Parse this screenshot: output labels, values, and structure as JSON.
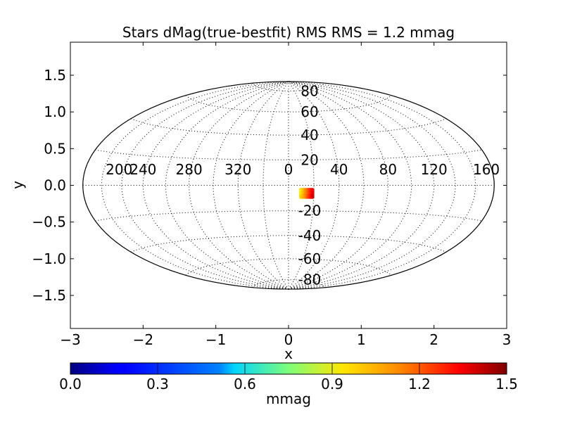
{
  "chart_data": {
    "type": "scatter",
    "title": "Stars dMag(true-bestfit)  RMS  RMS =  1.2 mmag",
    "xlabel": "x",
    "ylabel": "y",
    "xlim": [
      -3,
      3
    ],
    "ylim": [
      -1.95,
      1.95
    ],
    "xticks": [
      -3,
      -2,
      -1,
      0,
      1,
      2,
      3
    ],
    "yticks": [
      -1.5,
      -1.0,
      -0.5,
      0.0,
      0.5,
      1.0,
      1.5
    ],
    "xtick_labels": [
      "−3",
      "−2",
      "−1",
      "0",
      "1",
      "2",
      "3"
    ],
    "ytick_labels": [
      "−1.5",
      "−1.0",
      "−0.5",
      "0.0",
      "0.5",
      "1.0",
      "1.5"
    ],
    "projection": "hammer-aitoff",
    "grid": true,
    "longitude_labels": [
      {
        "lon": 200,
        "label": "200"
      },
      {
        "lon": 240,
        "label": "240"
      },
      {
        "lon": 280,
        "label": "280"
      },
      {
        "lon": 320,
        "label": "320"
      },
      {
        "lon": 0,
        "label": "0"
      },
      {
        "lon": 40,
        "label": "40"
      },
      {
        "lon": 80,
        "label": "80"
      },
      {
        "lon": 120,
        "label": "120"
      },
      {
        "lon": 160,
        "label": "160"
      }
    ],
    "latitude_labels": [
      {
        "lat": 80,
        "label": "80"
      },
      {
        "lat": 60,
        "label": "60"
      },
      {
        "lat": 40,
        "label": "40"
      },
      {
        "lat": 20,
        "label": "20"
      },
      {
        "lat": -20,
        "label": "-20"
      },
      {
        "lat": -40,
        "label": "-40"
      },
      {
        "lat": -60,
        "label": "-60"
      },
      {
        "lat": -80,
        "label": "-80"
      }
    ],
    "points": [
      {
        "x": 0.17,
        "y": -0.06,
        "v": 1.0
      },
      {
        "x": 0.19,
        "y": -0.06,
        "v": 1.02
      },
      {
        "x": 0.21,
        "y": -0.06,
        "v": 1.05
      },
      {
        "x": 0.23,
        "y": -0.06,
        "v": 1.1
      },
      {
        "x": 0.25,
        "y": -0.06,
        "v": 1.15
      },
      {
        "x": 0.27,
        "y": -0.06,
        "v": 1.2
      },
      {
        "x": 0.29,
        "y": -0.06,
        "v": 1.25
      },
      {
        "x": 0.31,
        "y": -0.06,
        "v": 1.3
      },
      {
        "x": 0.33,
        "y": -0.06,
        "v": 1.35
      },
      {
        "x": 0.17,
        "y": -0.08,
        "v": 0.95
      },
      {
        "x": 0.19,
        "y": -0.08,
        "v": 1.0
      },
      {
        "x": 0.21,
        "y": -0.08,
        "v": 1.03
      },
      {
        "x": 0.23,
        "y": -0.08,
        "v": 1.08
      },
      {
        "x": 0.25,
        "y": -0.08,
        "v": 1.12
      },
      {
        "x": 0.27,
        "y": -0.08,
        "v": 1.18
      },
      {
        "x": 0.29,
        "y": -0.08,
        "v": 1.22
      },
      {
        "x": 0.31,
        "y": -0.08,
        "v": 1.28
      },
      {
        "x": 0.33,
        "y": -0.08,
        "v": 1.33
      },
      {
        "x": 0.17,
        "y": -0.1,
        "v": 0.98
      },
      {
        "x": 0.19,
        "y": -0.1,
        "v": 1.01
      },
      {
        "x": 0.21,
        "y": -0.1,
        "v": 1.06
      },
      {
        "x": 0.23,
        "y": -0.1,
        "v": 1.09
      },
      {
        "x": 0.25,
        "y": -0.1,
        "v": 1.14
      },
      {
        "x": 0.27,
        "y": -0.1,
        "v": 1.19
      },
      {
        "x": 0.29,
        "y": -0.1,
        "v": 1.24
      },
      {
        "x": 0.31,
        "y": -0.1,
        "v": 1.29
      },
      {
        "x": 0.33,
        "y": -0.1,
        "v": 1.36
      },
      {
        "x": 0.17,
        "y": -0.12,
        "v": 0.96
      },
      {
        "x": 0.19,
        "y": -0.12,
        "v": 1.0
      },
      {
        "x": 0.21,
        "y": -0.12,
        "v": 1.04
      },
      {
        "x": 0.23,
        "y": -0.12,
        "v": 1.1
      },
      {
        "x": 0.25,
        "y": -0.12,
        "v": 1.13
      },
      {
        "x": 0.27,
        "y": -0.12,
        "v": 1.17
      },
      {
        "x": 0.29,
        "y": -0.12,
        "v": 1.23
      },
      {
        "x": 0.31,
        "y": -0.12,
        "v": 1.27
      },
      {
        "x": 0.33,
        "y": -0.12,
        "v": 1.34
      },
      {
        "x": 0.17,
        "y": -0.14,
        "v": 0.99
      },
      {
        "x": 0.19,
        "y": -0.14,
        "v": 1.02
      },
      {
        "x": 0.21,
        "y": -0.14,
        "v": 1.07
      },
      {
        "x": 0.23,
        "y": -0.14,
        "v": 1.11
      },
      {
        "x": 0.25,
        "y": -0.14,
        "v": 1.16
      },
      {
        "x": 0.27,
        "y": -0.14,
        "v": 1.2
      },
      {
        "x": 0.29,
        "y": -0.14,
        "v": 1.26
      },
      {
        "x": 0.31,
        "y": -0.14,
        "v": 1.31
      },
      {
        "x": 0.33,
        "y": -0.14,
        "v": 1.37
      },
      {
        "x": 0.17,
        "y": -0.16,
        "v": 1.0
      },
      {
        "x": 0.19,
        "y": -0.16,
        "v": 1.03
      },
      {
        "x": 0.21,
        "y": -0.16,
        "v": 1.05
      },
      {
        "x": 0.23,
        "y": -0.16,
        "v": 1.09
      },
      {
        "x": 0.25,
        "y": -0.16,
        "v": 1.15
      },
      {
        "x": 0.27,
        "y": -0.16,
        "v": 1.21
      },
      {
        "x": 0.29,
        "y": -0.16,
        "v": 1.25
      },
      {
        "x": 0.31,
        "y": -0.16,
        "v": 1.3
      },
      {
        "x": 0.33,
        "y": -0.16,
        "v": 1.38
      }
    ],
    "colorbar": {
      "label": "mmag",
      "colormap": "jet",
      "vmin": 0.0,
      "vmax": 1.5,
      "ticks": [
        0.0,
        0.3,
        0.6,
        0.9,
        1.2,
        1.5
      ],
      "tick_labels": [
        "0.0",
        "0.3",
        "0.6",
        "0.9",
        "1.2",
        "1.5"
      ],
      "orientation": "horizontal"
    }
  }
}
